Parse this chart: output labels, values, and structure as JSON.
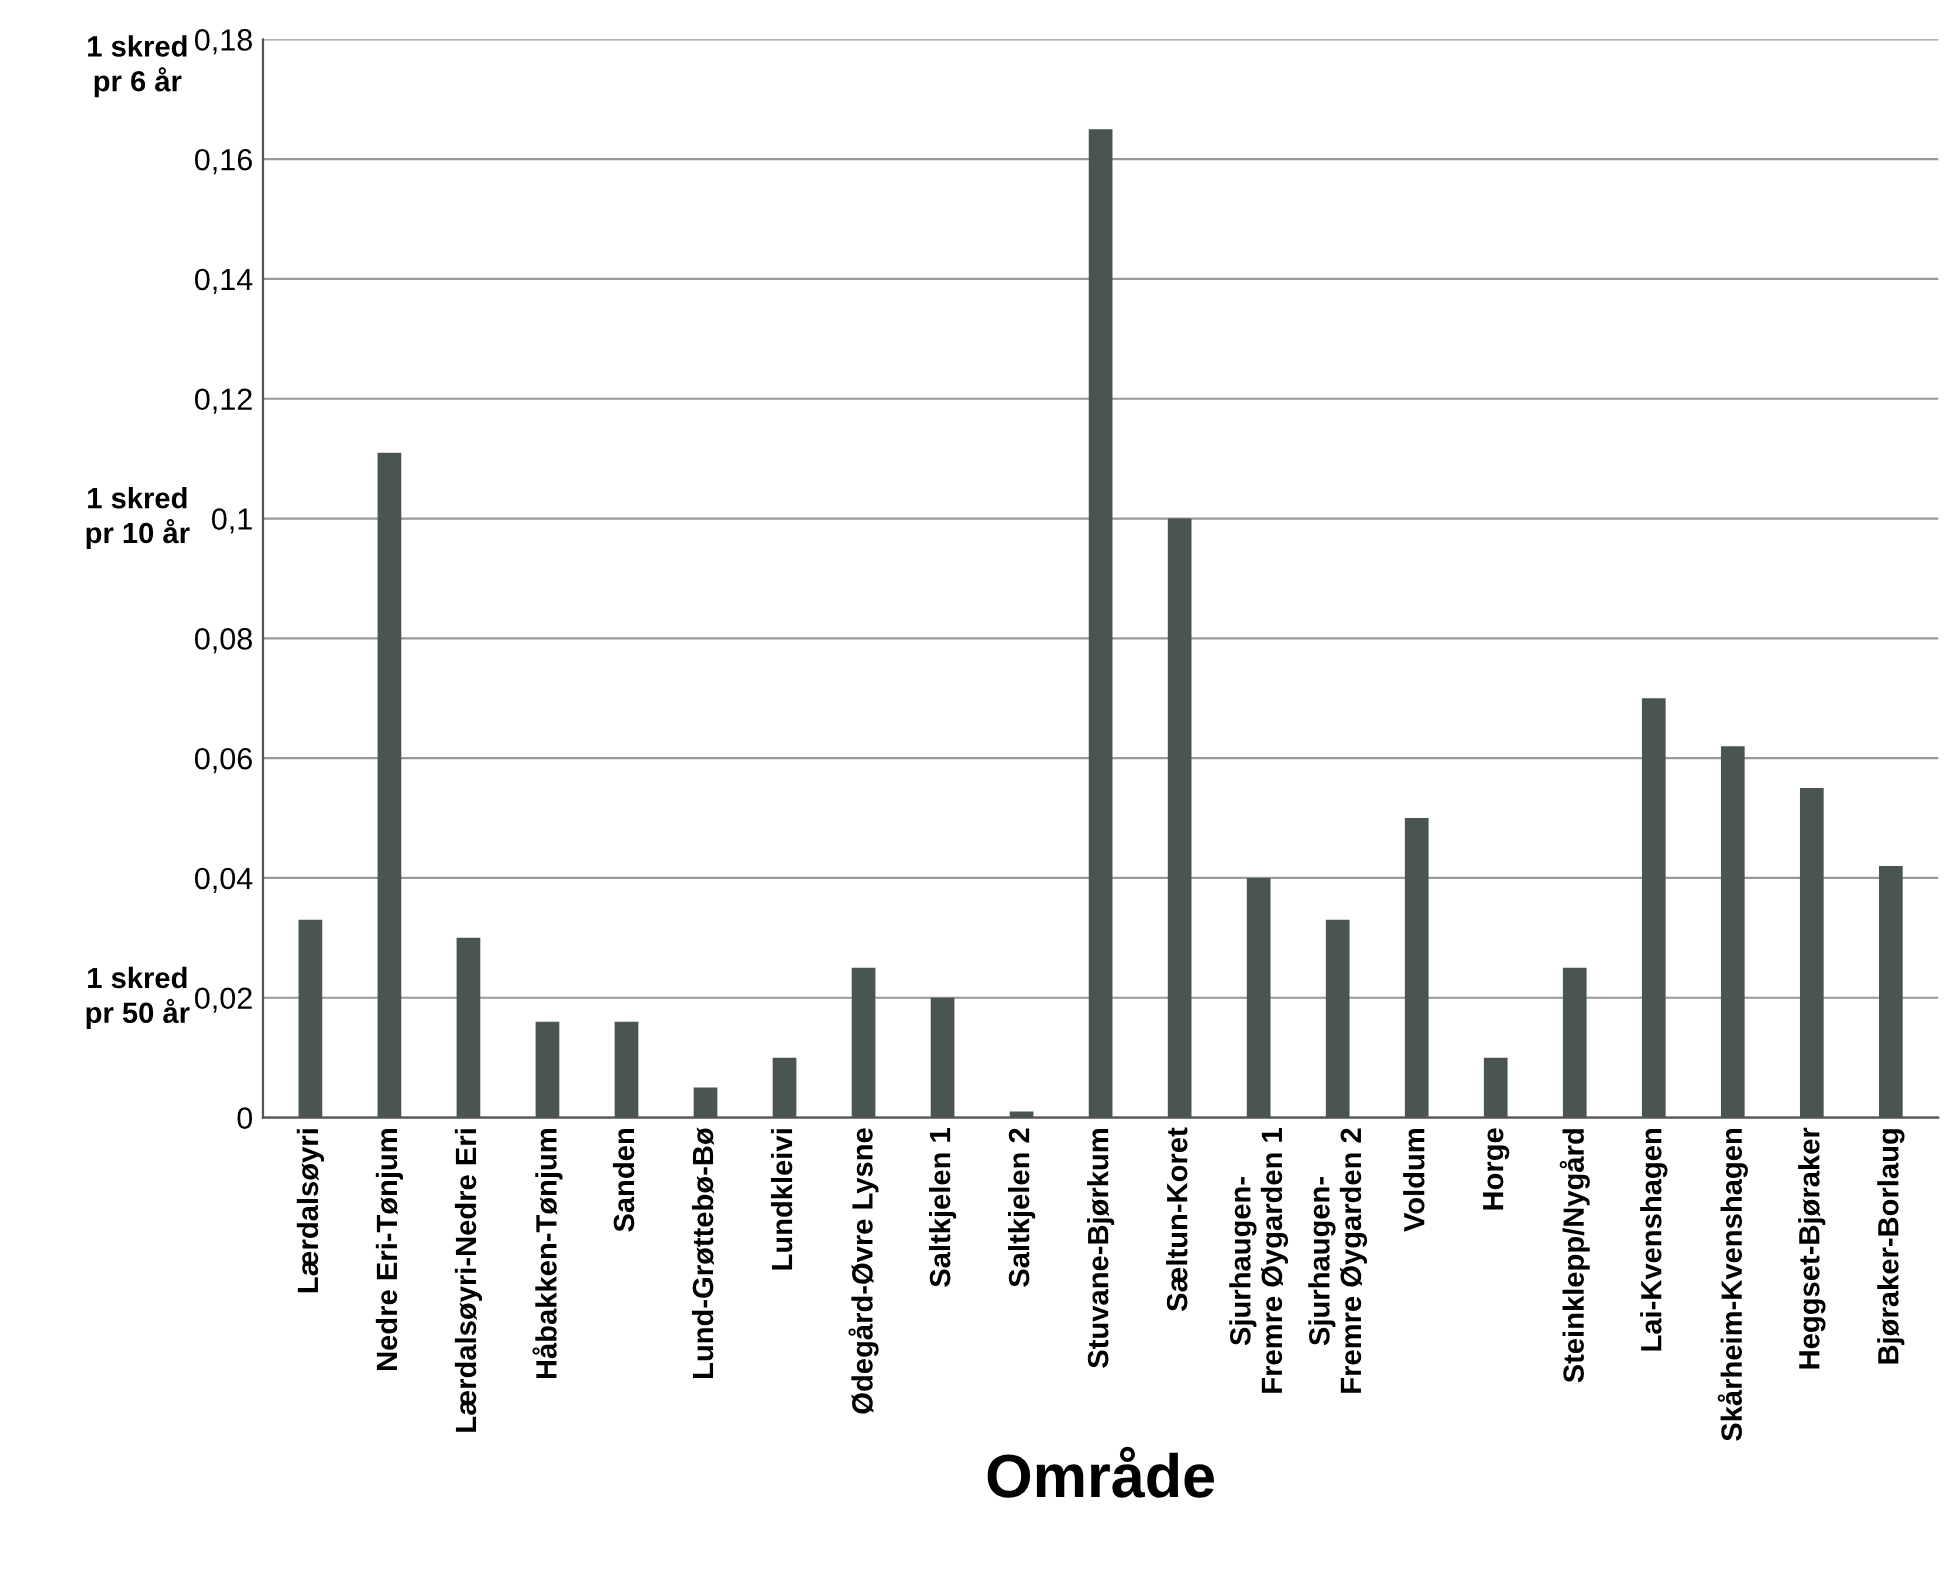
{
  "chart_data": {
    "type": "bar",
    "xlabel": "Område",
    "categories": [
      "Lærdalsøyri",
      "Nedre Eri-Tønjum",
      "Lærdalsøyri-Nedre Eri",
      "Håbakken-Tønjum",
      "Sanden",
      "Lund-Grøttebø-Bø",
      "Lundkleivi",
      "Ødegård-Øvre Lysne",
      "Saltkjelen 1",
      "Saltkjelen 2",
      "Stuvane-Bjørkum",
      "Sæltun-Koret",
      "Sjurhaugen-\nFremre Øygarden 1",
      "Sjurhaugen-\nFremre Øygarden 2",
      "Voldum",
      "Horge",
      "Steinklepp/Nygård",
      "Lai-Kvenshagen",
      "Skårheim-Kvenshagen",
      "Heggset-Bjøraker",
      "Bjøraker-Borlaug"
    ],
    "values": [
      0.033,
      0.111,
      0.03,
      0.016,
      0.016,
      0.005,
      0.01,
      0.025,
      0.02,
      0.001,
      0.165,
      0.1,
      0.04,
      0.033,
      0.05,
      0.01,
      0.025,
      0.07,
      0.062,
      0.055,
      0.042
    ],
    "color": "#4a5550",
    "ylim": [
      0,
      0.18
    ],
    "yticks": [
      0,
      {
        "value": 0.02,
        "label": "0,02"
      },
      {
        "value": 0.04,
        "label": "0,04"
      },
      {
        "value": 0.06,
        "label": "0,06"
      },
      {
        "value": 0.08,
        "label": "0,08"
      },
      {
        "value": 0.1,
        "label": "0,1"
      },
      {
        "value": 0.12,
        "label": "0,12"
      },
      {
        "value": 0.14,
        "label": "0,14"
      },
      {
        "value": 0.16,
        "label": "0,16"
      },
      {
        "value": 0.18,
        "label": "0,18"
      }
    ],
    "grid": "y",
    "annotations": [
      "1 skred\npr 6 år",
      "1 skred\npr 10 år",
      "1 skred\npr 50 år"
    ]
  }
}
